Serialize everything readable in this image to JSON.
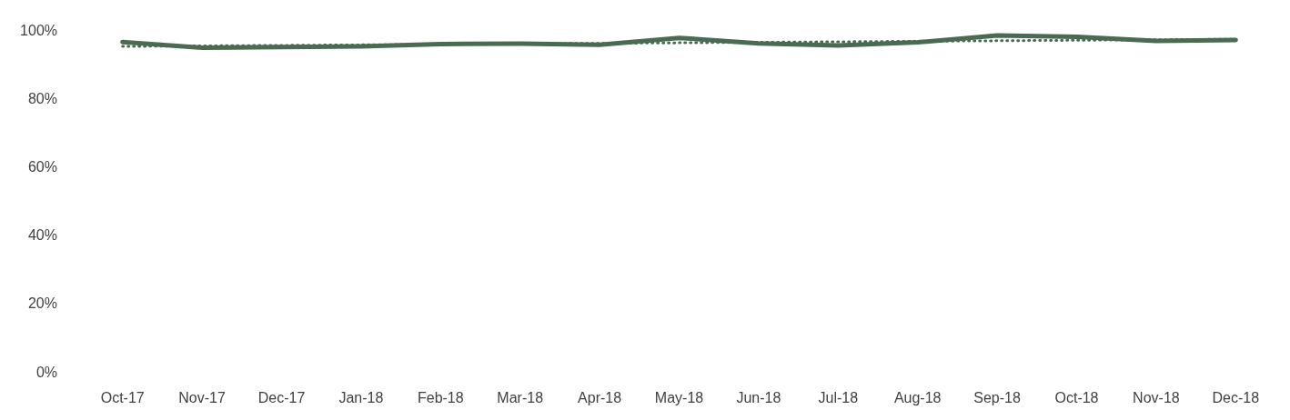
{
  "chart_data": {
    "type": "line",
    "categories": [
      "Oct-17",
      "Nov-17",
      "Dec-17",
      "Jan-18",
      "Feb-18",
      "Mar-18",
      "Apr-18",
      "May-18",
      "Jun-18",
      "Jul-18",
      "Aug-18",
      "Sep-18",
      "Oct-18",
      "Nov-18",
      "Dec-18"
    ],
    "series": [
      {
        "color": "#4a6b52",
        "line_style": "solid",
        "values": [
          96.5,
          94.8,
          95.0,
          95.2,
          95.9,
          96.0,
          95.7,
          97.7,
          96.1,
          95.5,
          96.4,
          98.4,
          98.0,
          96.8,
          97.1
        ]
      },
      {
        "color": "#4a6b52",
        "line_style": "dotted",
        "x": [
          "Oct-17",
          "Dec-18"
        ],
        "values": [
          95.2,
          97.3
        ]
      }
    ],
    "ylim": [
      0,
      100
    ],
    "yticks": [
      {
        "value": 0,
        "label": "0%"
      },
      {
        "value": 20,
        "label": "20%"
      },
      {
        "value": 40,
        "label": "40%"
      },
      {
        "value": 60,
        "label": "60%"
      },
      {
        "value": 80,
        "label": "80%"
      },
      {
        "value": 100,
        "label": "100%"
      }
    ],
    "grid": false,
    "marker": "none"
  }
}
